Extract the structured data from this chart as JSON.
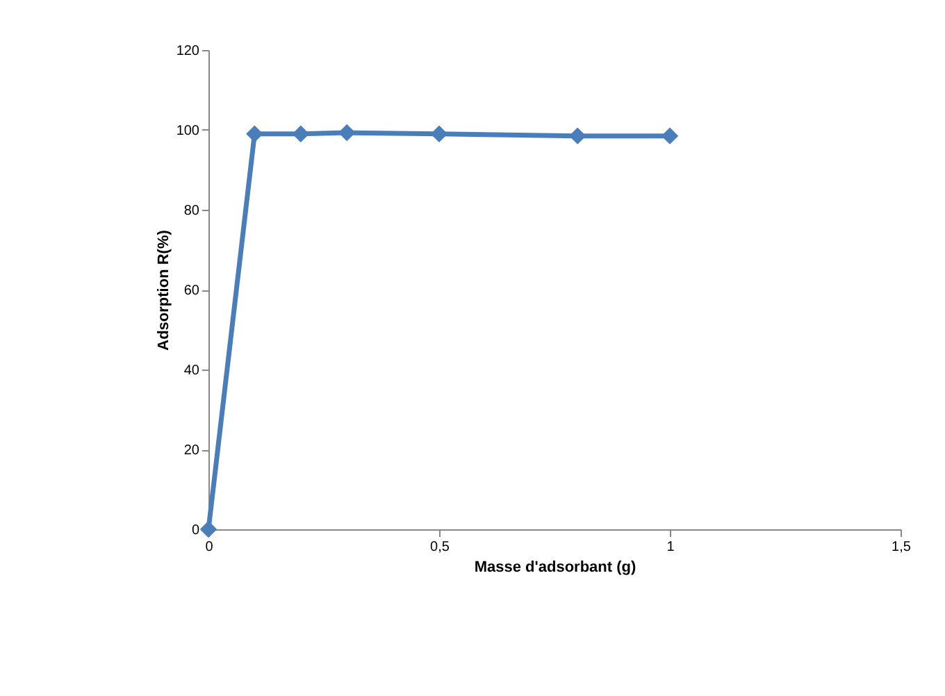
{
  "chart_data": {
    "type": "line",
    "xlabel": "Masse d'adsorbant  (g)",
    "ylabel": "Adsorption R(%)",
    "x": [
      0,
      0.1,
      0.2,
      0.3,
      0.5,
      0.8,
      1
    ],
    "series": [
      {
        "color": "#4a7ebb",
        "values": [
          0,
          99,
          99,
          99.3,
          99,
          98.5,
          98.5
        ]
      }
    ],
    "xlim": [
      0,
      1.5
    ],
    "xticks": [
      0,
      {
        "value": 0.5,
        "label": "0,5"
      },
      1,
      {
        "value": 1.5,
        "label": "1,5"
      }
    ],
    "ylim": [
      0,
      120
    ],
    "yticks": [
      0,
      20,
      40,
      60,
      80,
      100,
      120
    ],
    "grid": false,
    "legend": false,
    "marker": "diamond",
    "line_style": "solid"
  }
}
